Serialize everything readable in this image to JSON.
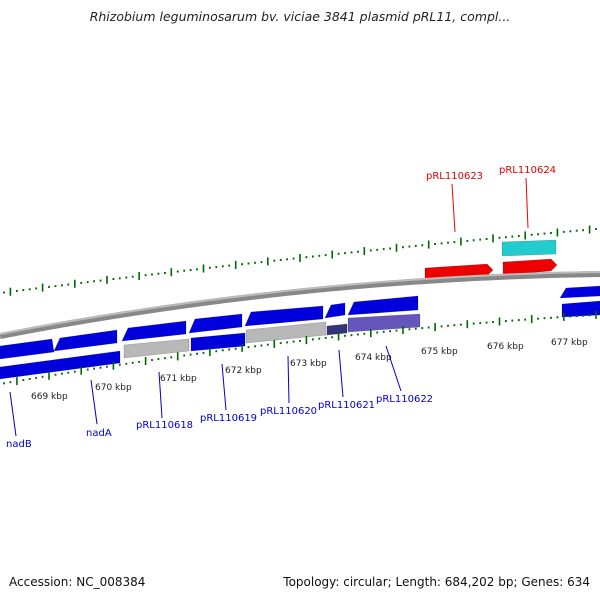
{
  "title": "Rhizobium leguminosarum bv. viciae 3841 plasmid pRL11, compl...",
  "footer": {
    "accession": "Accession: NC_008384",
    "summary": "Topology: circular; Length: 684,202 bp; Genes: 634"
  },
  "colors": {
    "gene_blue": "#0000dd",
    "gene_red": "#ee0000",
    "gene_cyan": "#22cccc",
    "gene_gray": "#b8b8b8",
    "gene_purple": "#6655bb",
    "gene_navy": "#333377",
    "tick_green": "#006600",
    "backbone": "#888888"
  },
  "ticks": [
    "669 kbp",
    "670 kbp",
    "671 kbp",
    "672 kbp",
    "673 kbp",
    "674 kbp",
    "675 kbp",
    "676 kbp",
    "677 kbp"
  ],
  "genes_forward": [
    "pRL110623",
    "pRL110624"
  ],
  "genes_reverse": [
    "nadB",
    "nadA",
    "pRL110618",
    "pRL110619",
    "pRL110620",
    "pRL110621",
    "pRL110622"
  ]
}
